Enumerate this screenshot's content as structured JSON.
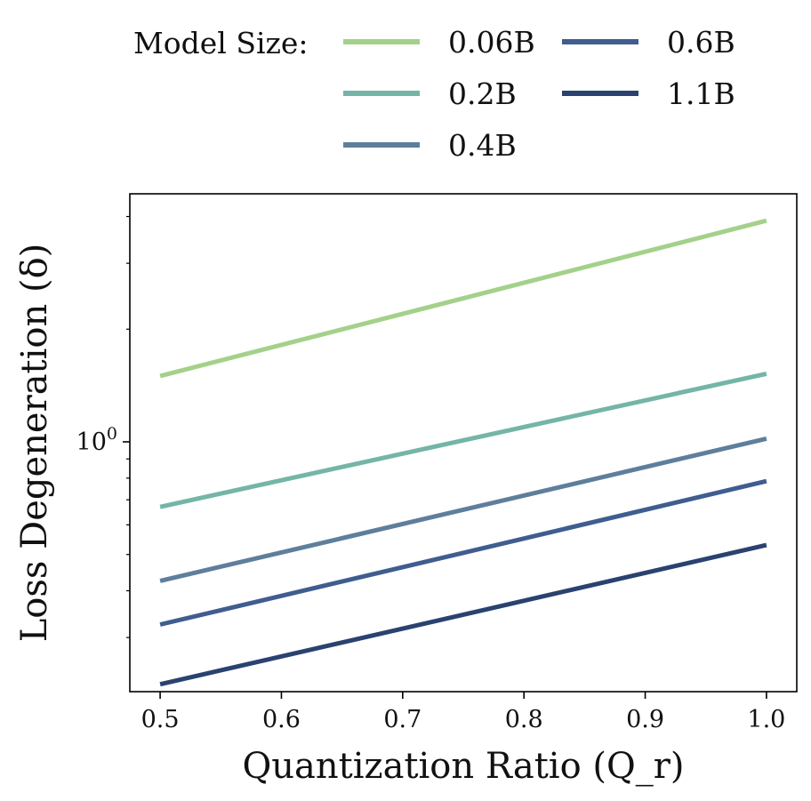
{
  "chart_data": {
    "type": "line",
    "legend": {
      "title": "Model Size:",
      "placement": "top",
      "columns": 2
    },
    "xlabel": "Quantization Ratio (Q_r)",
    "ylabel": "Loss Degeneration (δ)",
    "y_scale": "log",
    "xlim": [
      0.475,
      1.025
    ],
    "ylim": [
      0.215,
      4.6
    ],
    "x_ticks": [
      "0.5",
      "0.6",
      "0.7",
      "0.8",
      "0.9",
      "1.0"
    ],
    "x_tick_values": [
      0.5,
      0.6,
      0.7,
      0.8,
      0.9,
      1.0
    ],
    "y_ticks": [
      "10^0"
    ],
    "y_tick_values": [
      1
    ],
    "grid": false,
    "x": [
      0.5,
      1.0
    ],
    "series": [
      {
        "name": "0.06B",
        "color": "#a4d18a",
        "values": [
          1.5,
          3.9
        ]
      },
      {
        "name": "0.2B",
        "color": "#74b5a7",
        "values": [
          0.67,
          1.52
        ]
      },
      {
        "name": "0.4B",
        "color": "#5e7f9c",
        "values": [
          0.425,
          1.02
        ]
      },
      {
        "name": "0.6B",
        "color": "#3f5d8f",
        "values": [
          0.325,
          0.785
        ]
      },
      {
        "name": "1.1B",
        "color": "#2a426f",
        "values": [
          0.225,
          0.53
        ]
      }
    ]
  }
}
